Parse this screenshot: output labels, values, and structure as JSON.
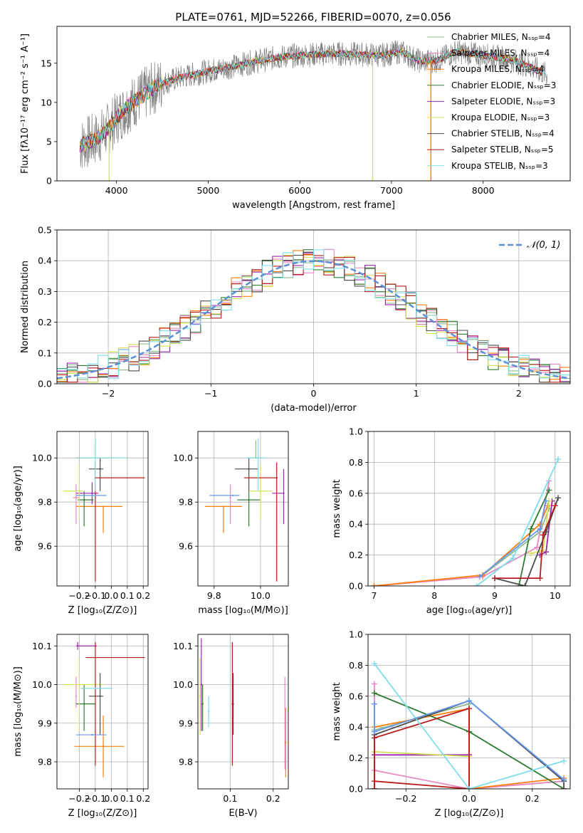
{
  "figure": {
    "title": "PLATE=0761, MJD=52266, FIBERID=0070, z=0.056"
  },
  "colors": {
    "Chabrier MILES": "#8fbc8f",
    "Salpeter MILES": "#e78ac3",
    "Kroupa MILES": "#ff7f0e",
    "Chabrier ELODIE": "#2e7d32",
    "Salpeter ELODIE": "#9c27b0",
    "Kroupa ELODIE": "#d4e157",
    "Chabrier STELIB": "#4d4d4d",
    "Salpeter STELIB": "#b71c1c",
    "Kroupa STELIB": "#80deea",
    "data": "#7f7f7f",
    "gaussian": "#5b8fd6",
    "extra_blue": "#6699ee"
  },
  "chart_data": [
    {
      "id": "spectrum",
      "type": "line",
      "title": "PLATE=0761, MJD=52266, FIBERID=0070, z=0.056",
      "xlabel": "wavelength [Angstrom, rest frame]",
      "ylabel": "Flux [fλ10⁻¹⁷ erg cm⁻² s⁻¹ A⁻¹]",
      "xlim": [
        3350,
        8950
      ],
      "ylim": [
        0,
        19.7
      ],
      "xticks": [
        4000,
        5000,
        6000,
        7000,
        8000
      ],
      "yticks": [
        0,
        5,
        10,
        15
      ],
      "grid": false,
      "legend_position": "top-right",
      "legend": [
        "Chabrier MILES, Nₛₛₚ=4",
        "Salpeter MILES, Nₛₛₚ=4",
        "Kroupa MILES, Nₛₛₚ=4",
        "Chabrier ELODIE, Nₛₛₚ=3",
        "Salpeter ELODIE, Nₛₛₚ=3",
        "Kroupa ELODIE, Nₛₛₚ=3",
        "Chabrier STELIB, Nₛₛₚ=4",
        "Salpeter STELIB, Nₛₛₚ=5",
        "Kroupa STELIB, Nₛₛₚ=3"
      ],
      "series_names": [
        "Chabrier MILES",
        "Salpeter MILES",
        "Kroupa MILES",
        "Chabrier ELODIE",
        "Salpeter ELODIE",
        "Kroupa ELODIE",
        "Chabrier STELIB",
        "Salpeter STELIB",
        "Kroupa STELIB"
      ],
      "continuum": {
        "x": [
          3600,
          3700,
          3800,
          3900,
          4000,
          4100,
          4200,
          4300,
          4400,
          4500,
          4700,
          5000,
          5200,
          5500,
          5800,
          6000,
          6300,
          6500,
          6700,
          6900,
          7100,
          7300,
          7500,
          7700,
          8000,
          8300,
          8500,
          8700
        ],
        "y": [
          4.5,
          5.0,
          5.5,
          6.5,
          8.0,
          9.2,
          10.2,
          11.0,
          11.8,
          12.4,
          13.2,
          14.0,
          14.4,
          15.2,
          15.8,
          16.0,
          16.2,
          16.2,
          16.1,
          16.0,
          16.5,
          15.3,
          15.3,
          16.5,
          16.0,
          15.5,
          14.6,
          13.5
        ]
      },
      "drops": [
        {
          "x": 3920,
          "y_low": 0
        },
        {
          "x": 6795,
          "y_low": 0
        },
        {
          "x": 7430,
          "y_low": 0
        }
      ]
    },
    {
      "id": "residuals",
      "type": "line",
      "xlabel": "(data-model)/error",
      "ylabel": "Normed distribution",
      "xlim": [
        -2.5,
        2.5
      ],
      "ylim": [
        0,
        0.5
      ],
      "xticks": [
        -2,
        -1,
        0,
        1,
        2
      ],
      "yticks": [
        0.0,
        0.1,
        0.2,
        0.3,
        0.4,
        0.5
      ],
      "grid": true,
      "legend_position": "top-right",
      "legend": [
        "𝒩(0, 1)"
      ],
      "gaussian": {
        "mean": 0,
        "sigma": 1
      },
      "hist_bin_width": 0.1
    },
    {
      "id": "age-vs-Z",
      "type": "scatter",
      "xlabel": "Z [log₁₀(Z/Z⊙)]",
      "ylabel": "age  [log₁₀(age/yr)]",
      "xlim": [
        -0.34,
        0.23
      ],
      "ylim": [
        9.42,
        10.12
      ],
      "xticks": [
        -0.2,
        -0.1,
        0.0,
        0.1,
        0.2
      ],
      "yticks": [
        9.6,
        9.8,
        10.0
      ],
      "grid": true,
      "points": [
        {
          "series": "Chabrier MILES",
          "x": -0.1,
          "y": 10.0,
          "xerr": [
            0.12,
            0.12
          ],
          "yerr": [
            0.0,
            0.08
          ]
        },
        {
          "series": "Salpeter MILES",
          "x": -0.22,
          "y": 9.82,
          "xerr": [
            0.02,
            0.02
          ],
          "yerr": [
            0.12,
            0.06
          ]
        },
        {
          "series": "Kroupa MILES",
          "x": -0.05,
          "y": 9.78,
          "xerr": [
            0.17,
            0.12
          ],
          "yerr": [
            0.12,
            0.0
          ]
        },
        {
          "series": "Chabrier ELODIE",
          "x": -0.17,
          "y": 9.81,
          "xerr": [
            0.04,
            0.06
          ],
          "yerr": [
            0.12,
            0.04
          ]
        },
        {
          "series": "Salpeter ELODIE",
          "x": -0.12,
          "y": 9.84,
          "xerr": [
            0.1,
            0.04
          ],
          "yerr": [
            0.05,
            0.05
          ]
        },
        {
          "series": "Kroupa ELODIE",
          "x": -0.2,
          "y": 9.85,
          "xerr": [
            0.1,
            0.02
          ],
          "yerr": [
            0.13,
            0.12
          ]
        },
        {
          "series": "Chabrier STELIB",
          "x": -0.07,
          "y": 9.95,
          "xerr": [
            0.07,
            0.02
          ],
          "yerr": [
            0.1,
            0.05
          ]
        },
        {
          "series": "Salpeter STELIB",
          "x": -0.1,
          "y": 9.91,
          "xerr": [
            0.0,
            0.31
          ],
          "yerr": [
            0.47,
            0.07
          ]
        },
        {
          "series": "Kroupa STELIB",
          "x": -0.1,
          "y": 10.0,
          "xerr": [
            0.1,
            0.2
          ],
          "yerr": [
            0.15,
            0.09
          ]
        },
        {
          "series": "extra_blue",
          "x": -0.12,
          "y": 9.83,
          "xerr": [
            0.1,
            0.09
          ],
          "yerr": [
            0.0,
            0.0
          ]
        }
      ]
    },
    {
      "id": "age-vs-mass",
      "type": "scatter",
      "xlabel": "mass [log₁₀(M/M⊙)]",
      "ylabel": "",
      "xlim": [
        9.73,
        10.12
      ],
      "ylim": [
        9.42,
        10.12
      ],
      "xticks": [
        9.8,
        10.0
      ],
      "yticks": [
        9.6,
        9.8,
        10.0
      ],
      "grid": true,
      "points": [
        {
          "series": "Chabrier MILES",
          "x": 9.98,
          "y": 10.0,
          "xerr": [
            0.04,
            0.03
          ],
          "yerr": [
            0.0,
            0.08
          ]
        },
        {
          "series": "Salpeter MILES",
          "x": 9.87,
          "y": 9.82,
          "xerr": [
            0.0,
            0.0
          ],
          "yerr": [
            0.12,
            0.06
          ]
        },
        {
          "series": "Kroupa MILES",
          "x": 9.84,
          "y": 9.78,
          "xerr": [
            0.08,
            0.08
          ],
          "yerr": [
            0.12,
            0.0
          ]
        },
        {
          "series": "Chabrier ELODIE",
          "x": 9.95,
          "y": 9.81,
          "xerr": [
            0.05,
            0.05
          ],
          "yerr": [
            0.12,
            0.04
          ]
        },
        {
          "series": "Salpeter ELODIE",
          "x": 10.1,
          "y": 9.84,
          "xerr": [
            0.05,
            0.0
          ],
          "yerr": [
            0.14,
            0.11
          ]
        },
        {
          "series": "Kroupa ELODIE",
          "x": 10.0,
          "y": 9.85,
          "xerr": [
            0.05,
            0.05
          ],
          "yerr": [
            0.13,
            0.12
          ]
        },
        {
          "series": "Chabrier STELIB",
          "x": 9.95,
          "y": 9.95,
          "xerr": [
            0.06,
            0.04
          ],
          "yerr": [
            0.1,
            0.05
          ]
        },
        {
          "series": "Salpeter STELIB",
          "x": 10.07,
          "y": 9.91,
          "xerr": [
            0.14,
            0.0
          ],
          "yerr": [
            0.47,
            0.07
          ]
        },
        {
          "series": "Kroupa STELIB",
          "x": 9.99,
          "y": 10.0,
          "xerr": [
            0.05,
            0.03
          ],
          "yerr": [
            0.15,
            0.09
          ]
        },
        {
          "series": "extra_blue",
          "x": 9.88,
          "y": 9.83,
          "xerr": [
            0.1,
            0.03
          ],
          "yerr": [
            0.0,
            0.0
          ]
        }
      ]
    },
    {
      "id": "weight-vs-age",
      "type": "line",
      "xlabel": "age  [log₁₀(age/yr)]",
      "ylabel": "mass weight",
      "xlim": [
        6.9,
        10.25
      ],
      "ylim": [
        0,
        1
      ],
      "xticks": [
        7,
        8,
        9,
        10
      ],
      "yticks": [
        0.0,
        0.2,
        0.4,
        0.6,
        0.8,
        1.0
      ],
      "grid": true,
      "series": [
        {
          "name": "Chabrier MILES",
          "x": [
            7.0,
            8.8,
            9.75,
            9.9
          ],
          "y": [
            0.0,
            0.07,
            0.35,
            0.5
          ]
        },
        {
          "name": "Salpeter MILES",
          "x": [
            7.0,
            8.8,
            9.7,
            9.9
          ],
          "y": [
            0.0,
            0.06,
            0.25,
            0.68
          ]
        },
        {
          "name": "Kroupa MILES",
          "x": [
            7.0,
            8.8,
            9.75,
            9.88
          ],
          "y": [
            0.0,
            0.07,
            0.4,
            0.52
          ]
        },
        {
          "name": "Chabrier ELODIE",
          "x": [
            9.4,
            9.6,
            9.9
          ],
          "y": [
            0.0,
            0.37,
            0.62
          ]
        },
        {
          "name": "Salpeter ELODIE",
          "x": [
            9.75,
            9.85,
            9.95
          ],
          "y": [
            0.2,
            0.22,
            0.55
          ]
        },
        {
          "name": "Kroupa ELODIE",
          "x": [
            9.6,
            9.8,
            9.9
          ],
          "y": [
            0.21,
            0.23,
            0.55
          ]
        },
        {
          "name": "Chabrier STELIB",
          "x": [
            9.0,
            9.5,
            9.85,
            10.05
          ],
          "y": [
            0.05,
            0.0,
            0.35,
            0.57
          ]
        },
        {
          "name": "Salpeter STELIB",
          "x": [
            9.0,
            9.75,
            9.8,
            10.0
          ],
          "y": [
            0.05,
            0.05,
            0.33,
            0.52
          ]
        },
        {
          "name": "Kroupa STELIB",
          "x": [
            8.7,
            9.3,
            10.05
          ],
          "y": [
            0.0,
            0.18,
            0.82
          ]
        },
        {
          "name": "extra_blue",
          "x": [
            8.75,
            9.75,
            9.85
          ],
          "y": [
            0.06,
            0.37,
            0.55
          ]
        }
      ]
    },
    {
      "id": "mass-vs-Z",
      "type": "scatter",
      "xlabel": "Z [log₁₀(Z/Z⊙)]",
      "ylabel": "mass [log₁₀(M/M⊙)]",
      "xlim": [
        -0.34,
        0.23
      ],
      "ylim": [
        9.73,
        10.13
      ],
      "xticks": [
        -0.2,
        -0.1,
        0.0,
        0.1,
        0.2
      ],
      "yticks": [
        9.8,
        9.9,
        10.0,
        10.1
      ],
      "grid": true,
      "points": [
        {
          "series": "Chabrier MILES",
          "x": -0.1,
          "y": 9.99,
          "xerr": [
            0.09,
            0.1
          ],
          "yerr": [
            0.0,
            0.0
          ]
        },
        {
          "series": "Salpeter MILES",
          "x": -0.22,
          "y": 9.97,
          "xerr": [
            0.0,
            0.0
          ],
          "yerr": [
            0.03,
            0.05
          ]
        },
        {
          "series": "Kroupa MILES",
          "x": -0.05,
          "y": 9.84,
          "xerr": [
            0.18,
            0.13
          ],
          "yerr": [
            0.08,
            0.08
          ]
        },
        {
          "series": "Chabrier ELODIE",
          "x": -0.17,
          "y": 9.95,
          "xerr": [
            0.05,
            0.07
          ],
          "yerr": [
            0.07,
            0.05
          ]
        },
        {
          "series": "Salpeter ELODIE",
          "x": -0.21,
          "y": 10.1,
          "xerr": [
            0.01,
            0.12
          ],
          "yerr": [
            0.01,
            0.01
          ]
        },
        {
          "series": "Kroupa ELODIE",
          "x": -0.2,
          "y": 10.0,
          "xerr": [
            0.1,
            0.15
          ],
          "yerr": [
            0.12,
            0.07
          ]
        },
        {
          "series": "Chabrier STELIB",
          "x": -0.07,
          "y": 9.97,
          "xerr": [
            0.07,
            0.02
          ],
          "yerr": [
            0.1,
            0.06
          ]
        },
        {
          "series": "Salpeter STELIB",
          "x": -0.1,
          "y": 10.07,
          "xerr": [
            0.06,
            0.31
          ],
          "yerr": [
            0.28,
            0.04
          ]
        },
        {
          "series": "Kroupa STELIB",
          "x": -0.1,
          "y": 9.99,
          "xerr": [
            0.08,
            0.11
          ],
          "yerr": [
            0.0,
            0.0
          ]
        },
        {
          "series": "extra_blue",
          "x": -0.12,
          "y": 9.87,
          "xerr": [
            0.1,
            0.09
          ],
          "yerr": [
            0.0,
            0.0
          ]
        }
      ]
    },
    {
      "id": "mass-vs-ebv",
      "type": "scatter",
      "xlabel": "E(B-V)",
      "ylabel": "",
      "xlim": [
        0.025,
        0.235
      ],
      "ylim": [
        9.73,
        10.13
      ],
      "xticks": [
        0.1,
        0.2
      ],
      "yticks": [
        9.8,
        9.9,
        10.0,
        10.1
      ],
      "grid": true,
      "points": [
        {
          "series": "Salpeter ELODIE",
          "x": 0.033,
          "y": 10.0,
          "xerr": [
            0.0,
            0.0
          ],
          "yerr": [
            0.12,
            0.12
          ]
        },
        {
          "series": "Chabrier ELODIE",
          "x": 0.036,
          "y": 9.95,
          "xerr": [
            0.0,
            0.0
          ],
          "yerr": [
            0.07,
            0.05
          ]
        },
        {
          "series": "Kroupa ELODIE",
          "x": 0.03,
          "y": 9.97,
          "xerr": [
            0.0,
            0.0
          ],
          "yerr": [
            0.1,
            0.1
          ]
        },
        {
          "series": "Kroupa STELIB",
          "x": 0.05,
          "y": 9.93,
          "xerr": [
            0.0,
            0.0
          ],
          "yerr": [
            0.04,
            0.04
          ]
        },
        {
          "series": "Chabrier STELIB",
          "x": 0.107,
          "y": 9.95,
          "xerr": [
            0.0,
            0.0
          ],
          "yerr": [
            0.08,
            0.08
          ]
        },
        {
          "series": "Salpeter STELIB",
          "x": 0.105,
          "y": 9.95,
          "xerr": [
            0.0,
            0.0
          ],
          "yerr": [
            0.16,
            0.16
          ]
        },
        {
          "series": "Salpeter MILES",
          "x": 0.227,
          "y": 9.9,
          "xerr": [
            0.0,
            0.0
          ],
          "yerr": [
            0.12,
            0.12
          ]
        },
        {
          "series": "Kroupa MILES",
          "x": 0.229,
          "y": 9.85,
          "xerr": [
            0.0,
            0.0
          ],
          "yerr": [
            0.09,
            0.09
          ]
        }
      ]
    },
    {
      "id": "weight-vs-Z",
      "type": "line",
      "xlabel": "Z [log₁₀(Z/Z⊙)]",
      "ylabel": "mass weight",
      "xlim": [
        -0.32,
        0.32
      ],
      "ylim": [
        0,
        1
      ],
      "xticks": [
        -0.2,
        0.0,
        0.2
      ],
      "yticks": [
        0.0,
        0.2,
        0.4,
        0.6,
        0.8,
        1.0
      ],
      "grid": true,
      "series": [
        {
          "name": "Chabrier MILES",
          "x": [
            -0.3,
            -0.3,
            0.0,
            0.0,
            0.3
          ],
          "y": [
            0.0,
            0.38,
            0.55,
            0.0,
            0.05
          ]
        },
        {
          "name": "Salpeter MILES",
          "x": [
            -0.3,
            -0.3,
            0.0,
            0.0,
            0.3
          ],
          "y": [
            0.68,
            0.12,
            0.0,
            0.0,
            0.05
          ]
        },
        {
          "name": "Kroupa MILES",
          "x": [
            -0.3,
            -0.3,
            0.0,
            0.0,
            0.3
          ],
          "y": [
            0.0,
            0.4,
            0.52,
            0.0,
            0.07
          ]
        },
        {
          "name": "Chabrier ELODIE",
          "x": [
            -0.3,
            0.0,
            0.3
          ],
          "y": [
            0.62,
            0.37,
            0.0
          ]
        },
        {
          "name": "Salpeter ELODIE",
          "x": [
            -0.3,
            -0.3,
            0.0
          ],
          "y": [
            0.55,
            0.22,
            0.22
          ]
        },
        {
          "name": "Kroupa ELODIE",
          "x": [
            -0.3,
            -0.3,
            0.0
          ],
          "y": [
            0.55,
            0.24,
            0.21
          ]
        },
        {
          "name": "Chabrier STELIB",
          "x": [
            -0.3,
            -0.3,
            0.0,
            0.3,
            0.3
          ],
          "y": [
            0.0,
            0.35,
            0.57,
            0.05,
            0.0
          ]
        },
        {
          "name": "Salpeter STELIB",
          "x": [
            -0.3,
            -0.3,
            0.0,
            0.0,
            -0.3
          ],
          "y": [
            0.0,
            0.33,
            0.52,
            0.0,
            0.05
          ]
        },
        {
          "name": "Kroupa STELIB",
          "x": [
            -0.3,
            0.0,
            0.3
          ],
          "y": [
            0.81,
            0.0,
            0.18
          ]
        },
        {
          "name": "extra_blue",
          "x": [
            -0.3,
            -0.3,
            0.0,
            0.3
          ],
          "y": [
            0.55,
            0.37,
            0.57,
            0.06
          ]
        }
      ]
    }
  ]
}
